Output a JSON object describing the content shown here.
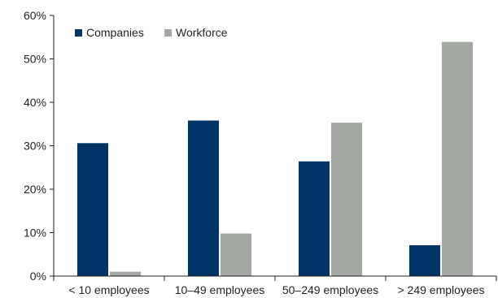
{
  "chart_data": {
    "type": "bar",
    "categories": [
      "< 10 employees",
      "10–49 employees",
      "50–249 employees",
      "> 249 employees"
    ],
    "series": [
      {
        "name": "Companies",
        "values": [
          30.6,
          35.8,
          26.4,
          7.1
        ],
        "color": "#003366"
      },
      {
        "name": "Workforce",
        "values": [
          1.0,
          9.8,
          35.3,
          53.9
        ],
        "color": "#a3a8a3"
      }
    ],
    "ylim": [
      0,
      60
    ],
    "yticks": [
      0,
      10,
      20,
      30,
      40,
      50,
      60
    ],
    "ytick_labels": [
      "0%",
      "10%",
      "20%",
      "30%",
      "40%",
      "50%",
      "60%"
    ],
    "grid": false,
    "legend_position": "top-left"
  }
}
